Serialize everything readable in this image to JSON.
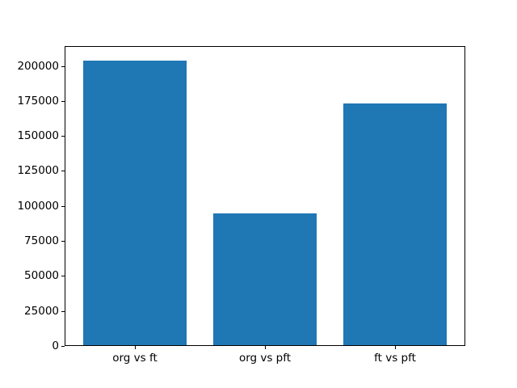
{
  "figure": {
    "background": "#ffffff",
    "axis_color": "#000000",
    "text_color": "#000000"
  },
  "chart_data": {
    "type": "bar",
    "title": "",
    "xlabel": "",
    "ylabel": "",
    "categories": [
      "org vs ft",
      "org vs pft",
      "ft vs pft"
    ],
    "values": [
      204000,
      95000,
      173000
    ],
    "bar_color": "#1f77b4",
    "bar_width": 0.8,
    "xlim": [
      -0.54,
      2.54
    ],
    "ylim": [
      0,
      214200
    ],
    "yticks": [
      0,
      25000,
      50000,
      75000,
      100000,
      125000,
      150000,
      175000,
      200000
    ],
    "ytick_labels": [
      "0",
      "25000",
      "50000",
      "75000",
      "100000",
      "125000",
      "150000",
      "175000",
      "200000"
    ],
    "grid": false,
    "legend": false
  }
}
